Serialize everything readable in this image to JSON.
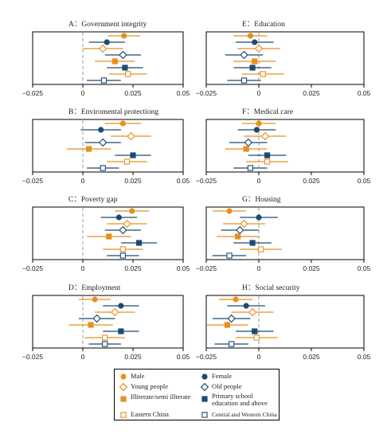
{
  "colors": {
    "orange": "#E8901E",
    "navy": "#1B4B72",
    "axis": "#000000",
    "zero_line": "#9A9A9A"
  },
  "chart_data": [
    {
      "type": "scatter",
      "title": "A：Government integrity",
      "xlim": [
        -0.025,
        0.05
      ],
      "x_ticks": [
        "−0.025",
        "0",
        "0.025",
        "0.05"
      ],
      "series": [
        {
          "name": "Male",
          "x": 0.0205,
          "ci": [
            0.0125,
            0.0285
          ]
        },
        {
          "name": "Female",
          "x": 0.012,
          "ci": [
            0.003,
            0.021
          ]
        },
        {
          "name": "Young people",
          "x": 0.01,
          "ci": [
            0.0,
            0.02
          ]
        },
        {
          "name": "Old people",
          "x": 0.02,
          "ci": [
            0.011,
            0.029
          ]
        },
        {
          "name": "Illiterate/semi illterate",
          "x": 0.016,
          "ci": [
            0.006,
            0.026
          ]
        },
        {
          "name": "Primary school education and above",
          "x": 0.021,
          "ci": [
            0.012,
            0.03
          ]
        },
        {
          "name": "Eastern China",
          "x": 0.0225,
          "ci": [
            0.013,
            0.032
          ]
        },
        {
          "name": "Central and Western China",
          "x": 0.0105,
          "ci": [
            0.002,
            0.019
          ]
        }
      ]
    },
    {
      "type": "scatter",
      "title": "E：Education",
      "xlim": [
        -0.025,
        0.05
      ],
      "x_ticks": [
        "−0.025",
        "0",
        "0.025",
        "0.05"
      ],
      "series": [
        {
          "name": "Male",
          "x": -0.004,
          "ci": [
            -0.012,
            0.004
          ]
        },
        {
          "name": "Female",
          "x": -0.002,
          "ci": [
            -0.011,
            0.007
          ]
        },
        {
          "name": "Young people",
          "x": 0.0,
          "ci": [
            -0.01,
            0.01
          ]
        },
        {
          "name": "Old people",
          "x": -0.007,
          "ci": [
            -0.016,
            0.002
          ]
        },
        {
          "name": "Illiterate/semi illterate",
          "x": -0.002,
          "ci": [
            -0.012,
            0.008
          ]
        },
        {
          "name": "Primary school education and above",
          "x": -0.003,
          "ci": [
            -0.012,
            0.006
          ]
        },
        {
          "name": "Eastern China",
          "x": 0.002,
          "ci": [
            -0.008,
            0.012
          ]
        },
        {
          "name": "Central and Western China",
          "x": -0.007,
          "ci": [
            -0.015,
            0.001
          ]
        }
      ]
    },
    {
      "type": "scatter",
      "title": "B：Enviromental protectiong",
      "xlim": [
        -0.025,
        0.05
      ],
      "x_ticks": [
        "−0.025",
        "0",
        "0.025",
        "0.05"
      ],
      "series": [
        {
          "name": "Male",
          "x": 0.02,
          "ci": [
            0.011,
            0.029
          ]
        },
        {
          "name": "Female",
          "x": 0.009,
          "ci": [
            -0.001,
            0.019
          ]
        },
        {
          "name": "Young people",
          "x": 0.024,
          "ci": [
            0.014,
            0.034
          ]
        },
        {
          "name": "Old people",
          "x": 0.01,
          "ci": [
            0.001,
            0.019
          ]
        },
        {
          "name": "Illiterate/semi illterate",
          "x": 0.003,
          "ci": [
            -0.008,
            0.014
          ]
        },
        {
          "name": "Primary school education and above",
          "x": 0.025,
          "ci": [
            0.016,
            0.034
          ]
        },
        {
          "name": "Eastern China",
          "x": 0.022,
          "ci": [
            0.012,
            0.032
          ]
        },
        {
          "name": "Central and Western China",
          "x": 0.01,
          "ci": [
            0.002,
            0.018
          ]
        }
      ]
    },
    {
      "type": "scatter",
      "title": "F：Medical care",
      "xlim": [
        -0.025,
        0.05
      ],
      "x_ticks": [
        "−0.025",
        "0",
        "0.025",
        "0.05"
      ],
      "series": [
        {
          "name": "Male",
          "x": 0.0,
          "ci": [
            -0.008,
            0.008
          ]
        },
        {
          "name": "Female",
          "x": -0.001,
          "ci": [
            -0.01,
            0.008
          ]
        },
        {
          "name": "Young people",
          "x": 0.003,
          "ci": [
            -0.007,
            0.013
          ]
        },
        {
          "name": "Old people",
          "x": -0.005,
          "ci": [
            -0.014,
            0.004
          ]
        },
        {
          "name": "Illiterate/semi illterate",
          "x": -0.006,
          "ci": [
            -0.016,
            0.004
          ]
        },
        {
          "name": "Primary school education and above",
          "x": 0.004,
          "ci": [
            -0.005,
            0.013
          ]
        },
        {
          "name": "Eastern China",
          "x": 0.004,
          "ci": [
            -0.006,
            0.014
          ]
        },
        {
          "name": "Central and Western China",
          "x": -0.004,
          "ci": [
            -0.012,
            0.004
          ]
        }
      ]
    },
    {
      "type": "scatter",
      "title": "C：Poverty gap",
      "xlim": [
        -0.025,
        0.05
      ],
      "x_ticks": [
        "−0.025",
        "0",
        "0.025",
        "0.05"
      ],
      "series": [
        {
          "name": "Male",
          "x": 0.0245,
          "ci": [
            0.016,
            0.033
          ]
        },
        {
          "name": "Female",
          "x": 0.018,
          "ci": [
            0.009,
            0.027
          ]
        },
        {
          "name": "Young people",
          "x": 0.022,
          "ci": [
            0.012,
            0.032
          ]
        },
        {
          "name": "Old people",
          "x": 0.02,
          "ci": [
            0.011,
            0.029
          ]
        },
        {
          "name": "Illiterate/semi illterate",
          "x": 0.013,
          "ci": [
            0.002,
            0.024
          ]
        },
        {
          "name": "Primary school education and above",
          "x": 0.028,
          "ci": [
            0.019,
            0.037
          ]
        },
        {
          "name": "Eastern China",
          "x": 0.02,
          "ci": [
            0.01,
            0.03
          ]
        },
        {
          "name": "Central and Western China",
          "x": 0.02,
          "ci": [
            0.012,
            0.028
          ]
        }
      ]
    },
    {
      "type": "scatter",
      "title": "G：Housing",
      "xlim": [
        -0.025,
        0.05
      ],
      "x_ticks": [
        "−0.025",
        "0",
        "0.025",
        "0.05"
      ],
      "series": [
        {
          "name": "Male",
          "x": -0.014,
          "ci": [
            -0.022,
            -0.006
          ]
        },
        {
          "name": "Female",
          "x": 0.0,
          "ci": [
            -0.009,
            0.009
          ]
        },
        {
          "name": "Young people",
          "x": -0.007,
          "ci": [
            -0.017,
            0.003
          ]
        },
        {
          "name": "Old people",
          "x": -0.009,
          "ci": [
            -0.018,
            0.0
          ]
        },
        {
          "name": "Illiterate/semi illterate",
          "x": -0.01,
          "ci": [
            -0.02,
            0.0
          ]
        },
        {
          "name": "Primary school education and above",
          "x": -0.003,
          "ci": [
            -0.012,
            0.006
          ]
        },
        {
          "name": "Eastern China",
          "x": 0.001,
          "ci": [
            -0.009,
            0.011
          ]
        },
        {
          "name": "Central and Western China",
          "x": -0.014,
          "ci": [
            -0.022,
            -0.006
          ]
        }
      ]
    },
    {
      "type": "scatter",
      "title": "D：Employment",
      "xlim": [
        -0.025,
        0.05
      ],
      "x_ticks": [
        "−0.025",
        "0",
        "0.025",
        "0.05"
      ],
      "series": [
        {
          "name": "Male",
          "x": 0.006,
          "ci": [
            -0.002,
            0.014
          ]
        },
        {
          "name": "Female",
          "x": 0.019,
          "ci": [
            0.01,
            0.028
          ]
        },
        {
          "name": "Young people",
          "x": 0.016,
          "ci": [
            0.006,
            0.026
          ]
        },
        {
          "name": "Old people",
          "x": 0.007,
          "ci": [
            -0.002,
            0.016
          ]
        },
        {
          "name": "Illiterate/semi illterate",
          "x": 0.004,
          "ci": [
            -0.007,
            0.015
          ]
        },
        {
          "name": "Primary school education and above",
          "x": 0.019,
          "ci": [
            0.01,
            0.028
          ]
        },
        {
          "name": "Eastern China",
          "x": 0.011,
          "ci": [
            0.001,
            0.021
          ]
        },
        {
          "name": "Central and Western China",
          "x": 0.011,
          "ci": [
            0.003,
            0.019
          ]
        }
      ]
    },
    {
      "type": "scatter",
      "title": "H：Social security",
      "xlim": [
        -0.025,
        0.05
      ],
      "x_ticks": [
        "−0.025",
        "0",
        "0.025",
        "0.05"
      ],
      "series": [
        {
          "name": "Male",
          "x": -0.011,
          "ci": [
            -0.019,
            -0.003
          ]
        },
        {
          "name": "Female",
          "x": -0.006,
          "ci": [
            -0.015,
            0.003
          ]
        },
        {
          "name": "Young people",
          "x": -0.003,
          "ci": [
            -0.013,
            0.007
          ]
        },
        {
          "name": "Old people",
          "x": -0.013,
          "ci": [
            -0.022,
            -0.004
          ]
        },
        {
          "name": "Illiterate/semi illterate",
          "x": -0.015,
          "ci": [
            -0.025,
            -0.005
          ]
        },
        {
          "name": "Primary school education and above",
          "x": -0.002,
          "ci": [
            -0.011,
            0.007
          ]
        },
        {
          "name": "Eastern China",
          "x": -0.001,
          "ci": [
            -0.011,
            0.009
          ]
        },
        {
          "name": "Central and Western China",
          "x": -0.013,
          "ci": [
            -0.021,
            -0.005
          ]
        }
      ]
    }
  ],
  "legend": {
    "items": [
      {
        "label": "Male",
        "marker": "circle-filled",
        "color": "#E8901E"
      },
      {
        "label": "Female",
        "marker": "circle-filled",
        "color": "#1B4B72"
      },
      {
        "label": "Young people",
        "marker": "diamond-open",
        "color": "#E8901E"
      },
      {
        "label": "Old people",
        "marker": "diamond-open",
        "color": "#1B4B72"
      },
      {
        "label": "Illiterate/semi illterate",
        "marker": "square-filled",
        "color": "#E8901E"
      },
      {
        "label": "Primary school education and above",
        "marker": "square-filled",
        "color": "#1B4B72"
      },
      {
        "label": "Eastern China",
        "marker": "square-open",
        "color": "#E8901E"
      },
      {
        "label": "Central and Western China",
        "marker": "square-open",
        "color": "#1B4B72"
      }
    ]
  }
}
